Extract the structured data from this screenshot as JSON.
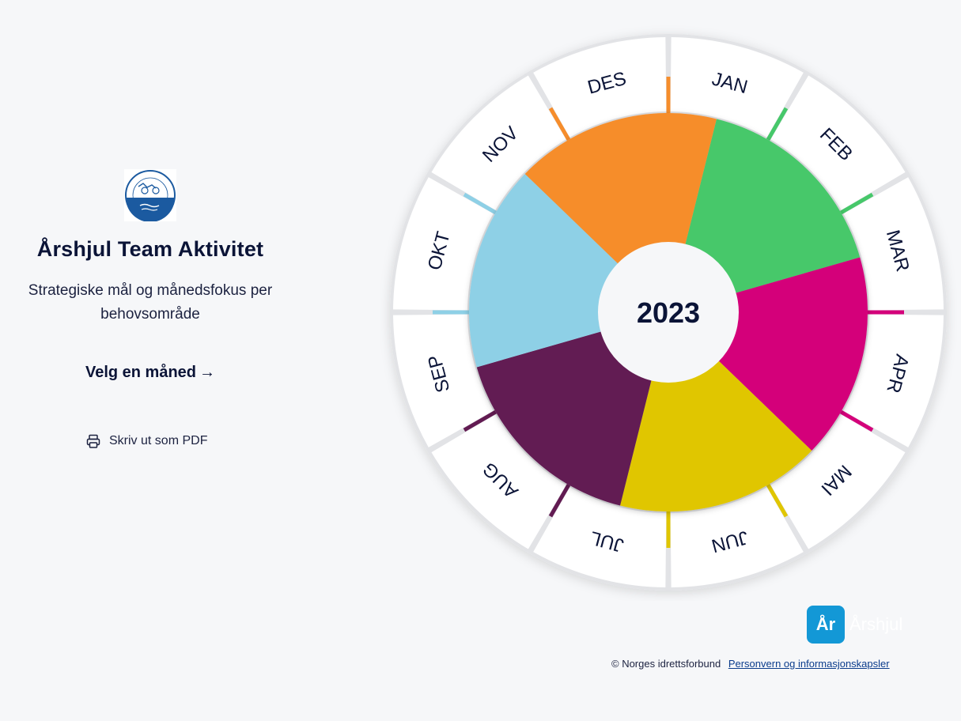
{
  "sidebar": {
    "title": "Årshjul Team Aktivitet",
    "subtitle": "Strategiske mål og månedsfokus per behovsområde",
    "select_month_label": "Velg en måned",
    "print_label": "Skriv ut som PDF"
  },
  "wheel": {
    "year": "2023",
    "months": [
      "JAN",
      "FEB",
      "MAR",
      "APR",
      "MAI",
      "JUN",
      "JUL",
      "AUG",
      "SEP",
      "OKT",
      "NOV",
      "DES"
    ],
    "month_marker_colors": [
      "#f68d2b",
      "#46c86a",
      "#46c86a",
      "#d4007a",
      "#d4007a",
      "#e0c600",
      "#e0c600",
      "#621b52",
      "#621b52",
      "#8ed0e6",
      "#8ed0e6",
      "#f68d2b"
    ],
    "segments": [
      {
        "color": "#46c86a"
      },
      {
        "color": "#d4007a"
      },
      {
        "color": "#e0c600"
      },
      {
        "color": "#621b52"
      },
      {
        "color": "#8ed0e6"
      },
      {
        "color": "#f68d2b"
      }
    ]
  },
  "brand": {
    "badge": "År",
    "name": "Årshjul"
  },
  "footer": {
    "copyright": "© Norges idrettsforbund",
    "privacy_link": "Personvern og informasjonskapsler"
  }
}
